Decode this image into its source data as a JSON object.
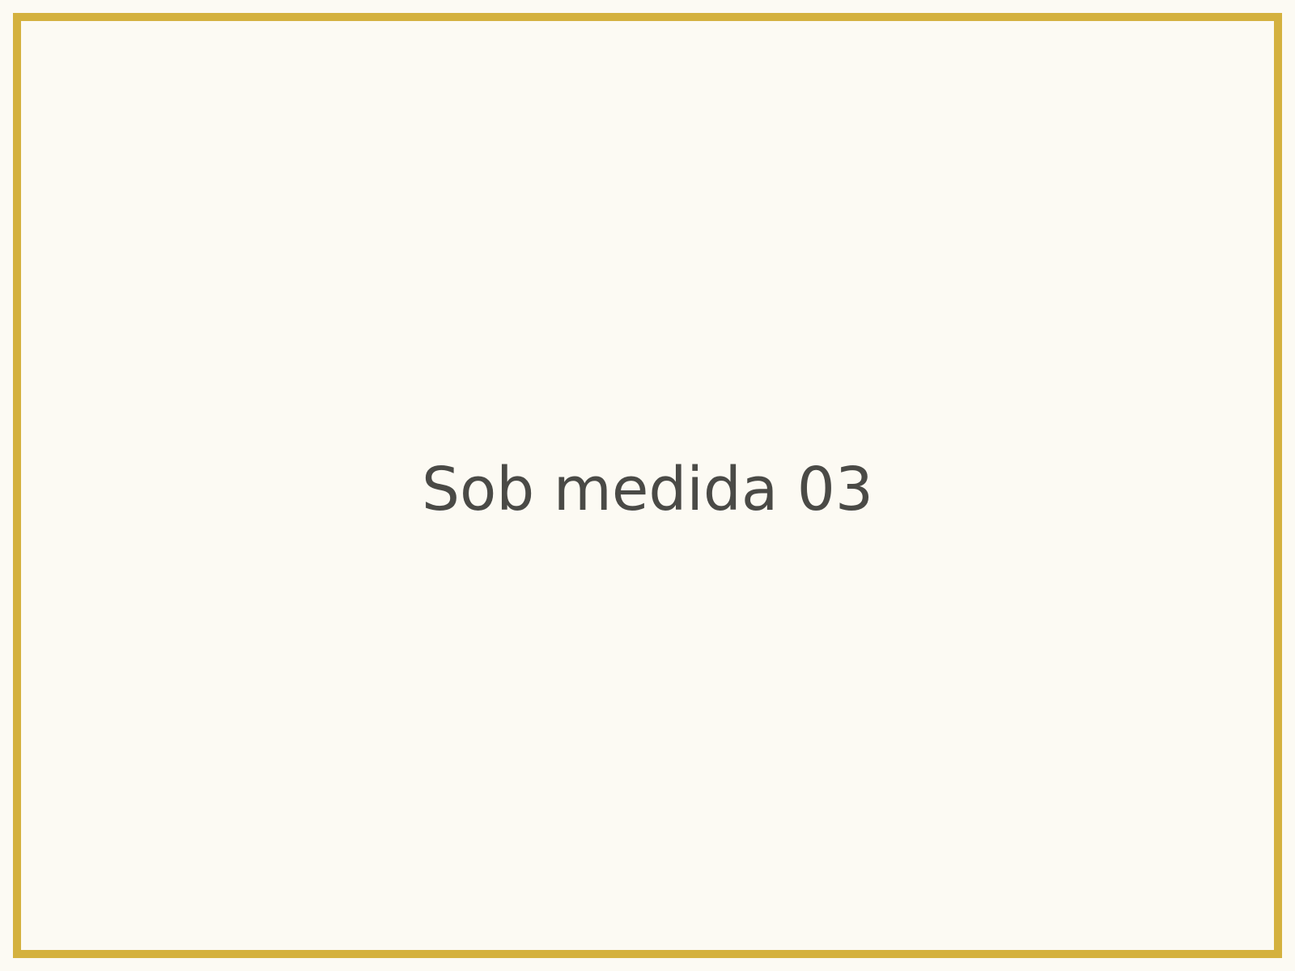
{
  "caption": "Sob medida 03",
  "colors": {
    "background": "#fcfaf3",
    "frame": "#d4b13f",
    "text": "#4a4a46"
  }
}
